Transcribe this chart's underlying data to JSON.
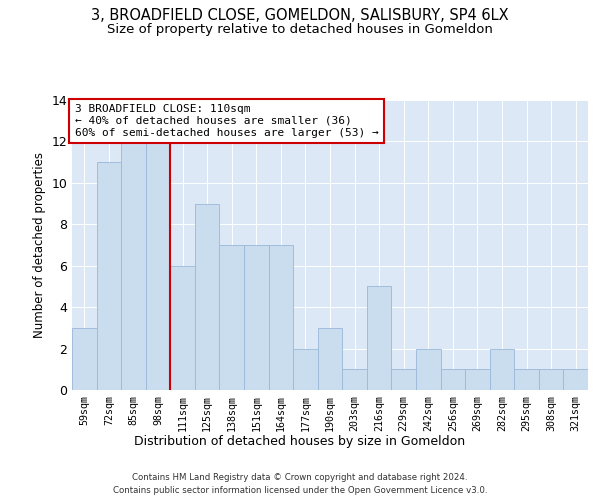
{
  "title1": "3, BROADFIELD CLOSE, GOMELDON, SALISBURY, SP4 6LX",
  "title2": "Size of property relative to detached houses in Gomeldon",
  "xlabel": "Distribution of detached houses by size in Gomeldon",
  "ylabel": "Number of detached properties",
  "categories": [
    "59sqm",
    "72sqm",
    "85sqm",
    "98sqm",
    "111sqm",
    "125sqm",
    "138sqm",
    "151sqm",
    "164sqm",
    "177sqm",
    "190sqm",
    "203sqm",
    "216sqm",
    "229sqm",
    "242sqm",
    "256sqm",
    "269sqm",
    "282sqm",
    "295sqm",
    "308sqm",
    "321sqm"
  ],
  "values": [
    3,
    11,
    12,
    12,
    6,
    9,
    7,
    7,
    7,
    2,
    3,
    1,
    5,
    1,
    2,
    1,
    1,
    2,
    1,
    1,
    1
  ],
  "bar_color": "#c9ddef",
  "bar_edge_color": "#9ab8d8",
  "vline_color": "#cc0000",
  "annotation_text": "3 BROADFIELD CLOSE: 110sqm\n← 40% of detached houses are smaller (36)\n60% of semi-detached houses are larger (53) →",
  "annotation_box_facecolor": "white",
  "annotation_box_edgecolor": "#cc0000",
  "ylim": [
    0,
    14
  ],
  "yticks": [
    0,
    2,
    4,
    6,
    8,
    10,
    12,
    14
  ],
  "footer1": "Contains HM Land Registry data © Crown copyright and database right 2024.",
  "footer2": "Contains public sector information licensed under the Open Government Licence v3.0.",
  "bg_color": "#dce8f5",
  "title_fontsize": 10.5,
  "subtitle_fontsize": 9.5,
  "bar_width": 1.0,
  "vline_index": 3.5
}
